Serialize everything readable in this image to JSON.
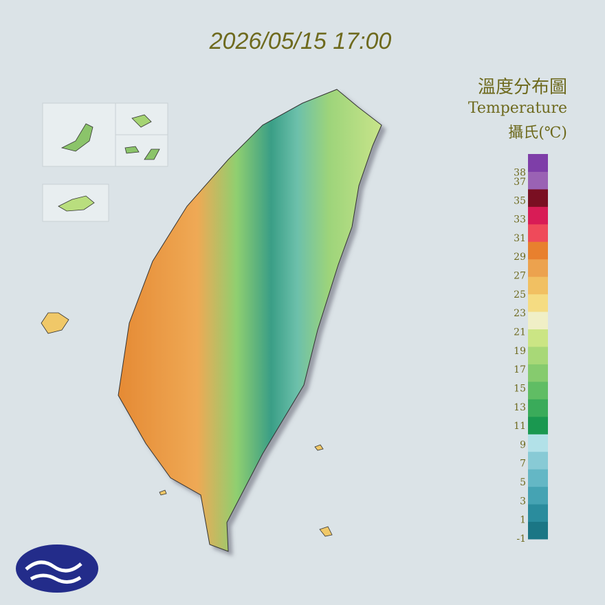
{
  "header": {
    "timestamp": "2026/05/15 17:00"
  },
  "legend": {
    "title_zh": "溫度分布圖",
    "title_en": "Temperature",
    "unit": "攝氏(℃)",
    "ticks": [
      38,
      37,
      35,
      33,
      31,
      29,
      27,
      25,
      23,
      21,
      19,
      17,
      15,
      13,
      11,
      9,
      7,
      5,
      3,
      1,
      -1
    ],
    "colors": [
      "#1b7685",
      "#2a8c9d",
      "#45a3b3",
      "#64b7c5",
      "#88cad5",
      "#b2e1e8",
      "#1a9850",
      "#3aab5a",
      "#60bd64",
      "#86cb6e",
      "#a8d877",
      "#cbe584",
      "#f0efc6",
      "#f5dc82",
      "#f1c062",
      "#eca24e",
      "#e8802e",
      "#ef4a5a",
      "#d81c56",
      "#7a0f22",
      "#9a62b4",
      "#7e3ea8"
    ]
  }
}
